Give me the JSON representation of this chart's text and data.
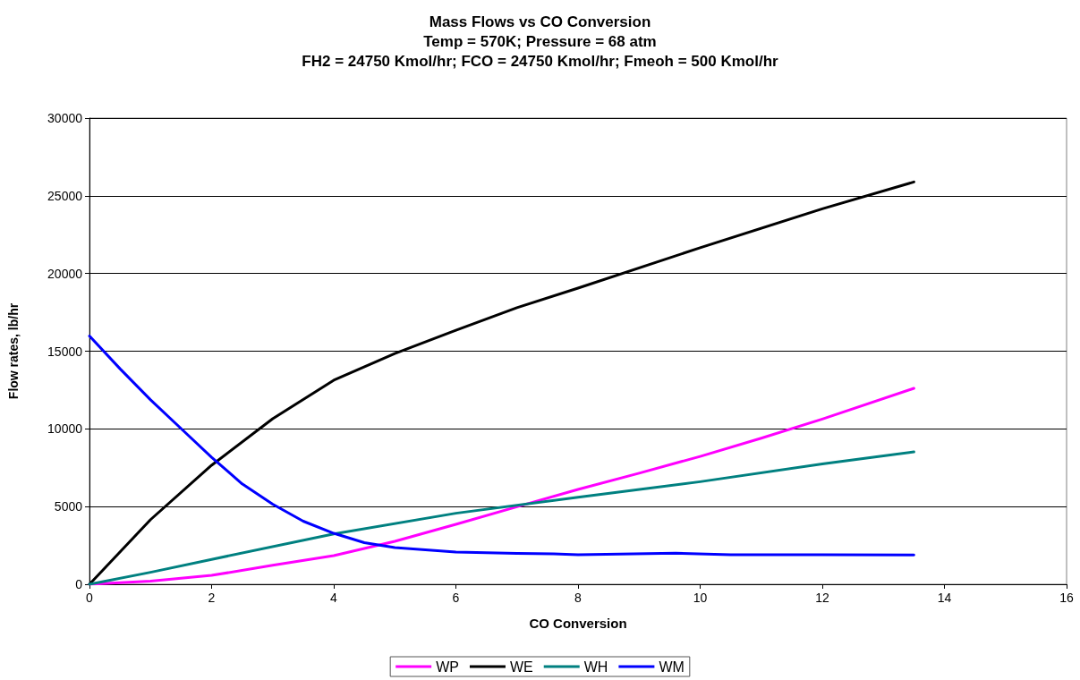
{
  "chart_data": {
    "type": "line",
    "title": "Mass Flows vs CO Conversion\nTemp = 570K; Pressure = 68 atm\nFH2 = 24750 Kmol/hr; FCO = 24750 Kmol/hr; Fmeoh = 500 Kmol/hr",
    "xlabel": "CO Conversion",
    "ylabel": "Flow rates, lb/hr",
    "xlim": [
      0,
      16
    ],
    "xticks": [
      0,
      2,
      4,
      6,
      8,
      10,
      12,
      14,
      16
    ],
    "ylim": [
      0,
      30000
    ],
    "yticks": [
      0,
      5000,
      10000,
      15000,
      20000,
      25000,
      30000
    ],
    "grid": "y",
    "legend": "bottom",
    "marker": "none",
    "line_style": "solid",
    "series": [
      {
        "name": "WP",
        "color": "#ff00ff",
        "x": [
          0,
          1,
          2,
          3,
          4,
          5,
          6,
          7,
          8,
          9,
          10,
          11,
          12,
          13.5
        ],
        "values": [
          0,
          200,
          570,
          1220,
          1840,
          2760,
          3860,
          4990,
          6100,
          7150,
          8230,
          9400,
          10630,
          12610
        ]
      },
      {
        "name": "WE",
        "color": "#000000",
        "x": [
          0,
          1,
          2,
          3,
          4,
          5,
          6,
          7,
          8,
          10,
          12,
          13.5
        ],
        "values": [
          0,
          4160,
          7660,
          10650,
          13130,
          14850,
          16350,
          17800,
          19060,
          21660,
          24160,
          25890
        ]
      },
      {
        "name": "WH",
        "color": "#008080",
        "x": [
          0,
          1,
          2,
          4,
          6,
          8,
          10,
          12,
          13.5
        ],
        "values": [
          0,
          770,
          1600,
          3240,
          4570,
          5600,
          6600,
          7750,
          8520
        ]
      },
      {
        "name": "WM",
        "color": "#0000ff",
        "x": [
          0,
          0.5,
          1,
          1.5,
          2,
          2.5,
          3,
          3.5,
          4,
          4.5,
          5,
          6,
          7,
          7.6,
          8,
          9.6,
          10.5,
          12,
          13.5
        ],
        "values": [
          15980,
          13870,
          11870,
          10020,
          8170,
          6460,
          5150,
          4060,
          3280,
          2680,
          2360,
          2070,
          1980,
          1960,
          1900,
          2000,
          1900,
          1900,
          1880
        ]
      }
    ]
  }
}
